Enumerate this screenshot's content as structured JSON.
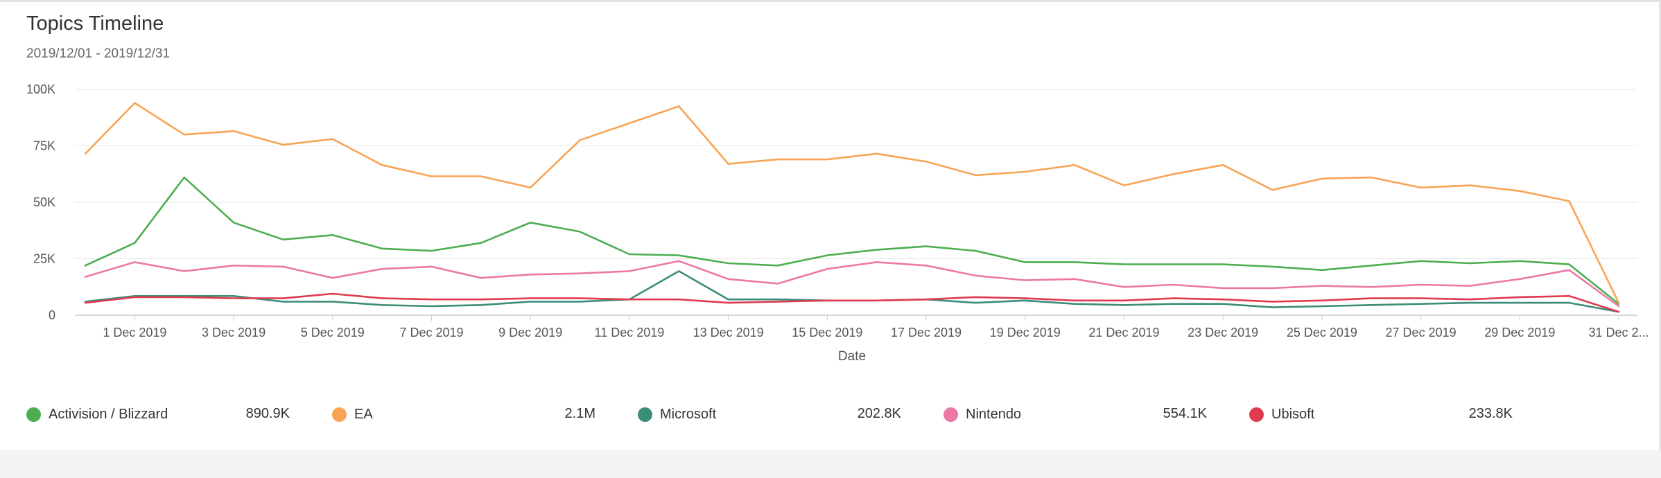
{
  "header": {
    "title": "Topics Timeline",
    "date_range": "2019/12/01 - 2019/12/31"
  },
  "chart_data": {
    "type": "line",
    "xlabel": "Date",
    "ylabel": "",
    "ylim": [
      0,
      100000
    ],
    "y_ticks": [
      {
        "value": 0,
        "label": "0"
      },
      {
        "value": 25000,
        "label": "25K"
      },
      {
        "value": 50000,
        "label": "50K"
      },
      {
        "value": 75000,
        "label": "75K"
      },
      {
        "value": 100000,
        "label": "100K"
      }
    ],
    "x_tick_labels": [
      "1 Dec 2019",
      "3 Dec 2019",
      "5 Dec 2019",
      "7 Dec 2019",
      "9 Dec 2019",
      "11 Dec 2019",
      "13 Dec 2019",
      "15 Dec 2019",
      "17 Dec 2019",
      "19 Dec 2019",
      "21 Dec 2019",
      "23 Dec 2019",
      "25 Dec 2019",
      "27 Dec 2019",
      "29 Dec 2019",
      "31 Dec 2..."
    ],
    "x": [
      "2019-11-30",
      "2019-12-01",
      "2019-12-02",
      "2019-12-03",
      "2019-12-04",
      "2019-12-05",
      "2019-12-06",
      "2019-12-07",
      "2019-12-08",
      "2019-12-09",
      "2019-12-10",
      "2019-12-11",
      "2019-12-12",
      "2019-12-13",
      "2019-12-14",
      "2019-12-15",
      "2019-12-16",
      "2019-12-17",
      "2019-12-18",
      "2019-12-19",
      "2019-12-20",
      "2019-12-21",
      "2019-12-22",
      "2019-12-23",
      "2019-12-24",
      "2019-12-25",
      "2019-12-26",
      "2019-12-27",
      "2019-12-28",
      "2019-12-29",
      "2019-12-30",
      "2019-12-31"
    ],
    "grid": true,
    "legend_position": "bottom",
    "series": [
      {
        "name": "Activision / Blizzard",
        "total": "890.9K",
        "color": "#4cae4f",
        "values": [
          22000,
          32000,
          61000,
          41000,
          33500,
          35500,
          29500,
          28500,
          32000,
          41000,
          37000,
          27000,
          26500,
          23000,
          22000,
          26500,
          29000,
          30500,
          28500,
          23500,
          23500,
          22500,
          22500,
          22500,
          21500,
          20000,
          22000,
          24000,
          23000,
          24000,
          22500,
          5000
        ]
      },
      {
        "name": "EA",
        "total": "2.1M",
        "color": "#f7a454",
        "values": [
          71500,
          94000,
          80000,
          81500,
          75500,
          78000,
          66500,
          61500,
          61500,
          56500,
          77500,
          85000,
          92500,
          67000,
          69000,
          69000,
          71500,
          68000,
          62000,
          63500,
          66500,
          57500,
          62500,
          66500,
          55500,
          60500,
          61000,
          56500,
          57500,
          55000,
          50500,
          5500
        ]
      },
      {
        "name": "Microsoft",
        "total": "202.8K",
        "color": "#3b8d78",
        "values": [
          6000,
          8500,
          8500,
          8500,
          6000,
          6000,
          4500,
          4000,
          4500,
          6000,
          6000,
          7000,
          19500,
          7000,
          7000,
          6500,
          6500,
          7000,
          5500,
          6500,
          5000,
          4500,
          5000,
          5000,
          3500,
          4000,
          4500,
          5000,
          5500,
          5500,
          5500,
          1500
        ]
      },
      {
        "name": "Nintendo",
        "total": "554.1K",
        "color": "#ec78a6",
        "values": [
          17000,
          23500,
          19500,
          22000,
          21500,
          16500,
          20500,
          21500,
          16500,
          18000,
          18500,
          19500,
          24000,
          16000,
          14000,
          20500,
          23500,
          22000,
          17500,
          15500,
          16000,
          12500,
          13500,
          12000,
          12000,
          13000,
          12500,
          13500,
          13000,
          16000,
          20000,
          4000
        ]
      },
      {
        "name": "Ubisoft",
        "total": "233.8K",
        "color": "#e03a4f",
        "values": [
          5500,
          8000,
          8000,
          7500,
          7500,
          9500,
          7500,
          7000,
          7000,
          7500,
          7500,
          7000,
          7000,
          5500,
          6000,
          6500,
          6500,
          7000,
          8000,
          7500,
          6500,
          6500,
          7500,
          7000,
          6000,
          6500,
          7500,
          7500,
          7000,
          8000,
          8500,
          1500
        ]
      }
    ]
  }
}
